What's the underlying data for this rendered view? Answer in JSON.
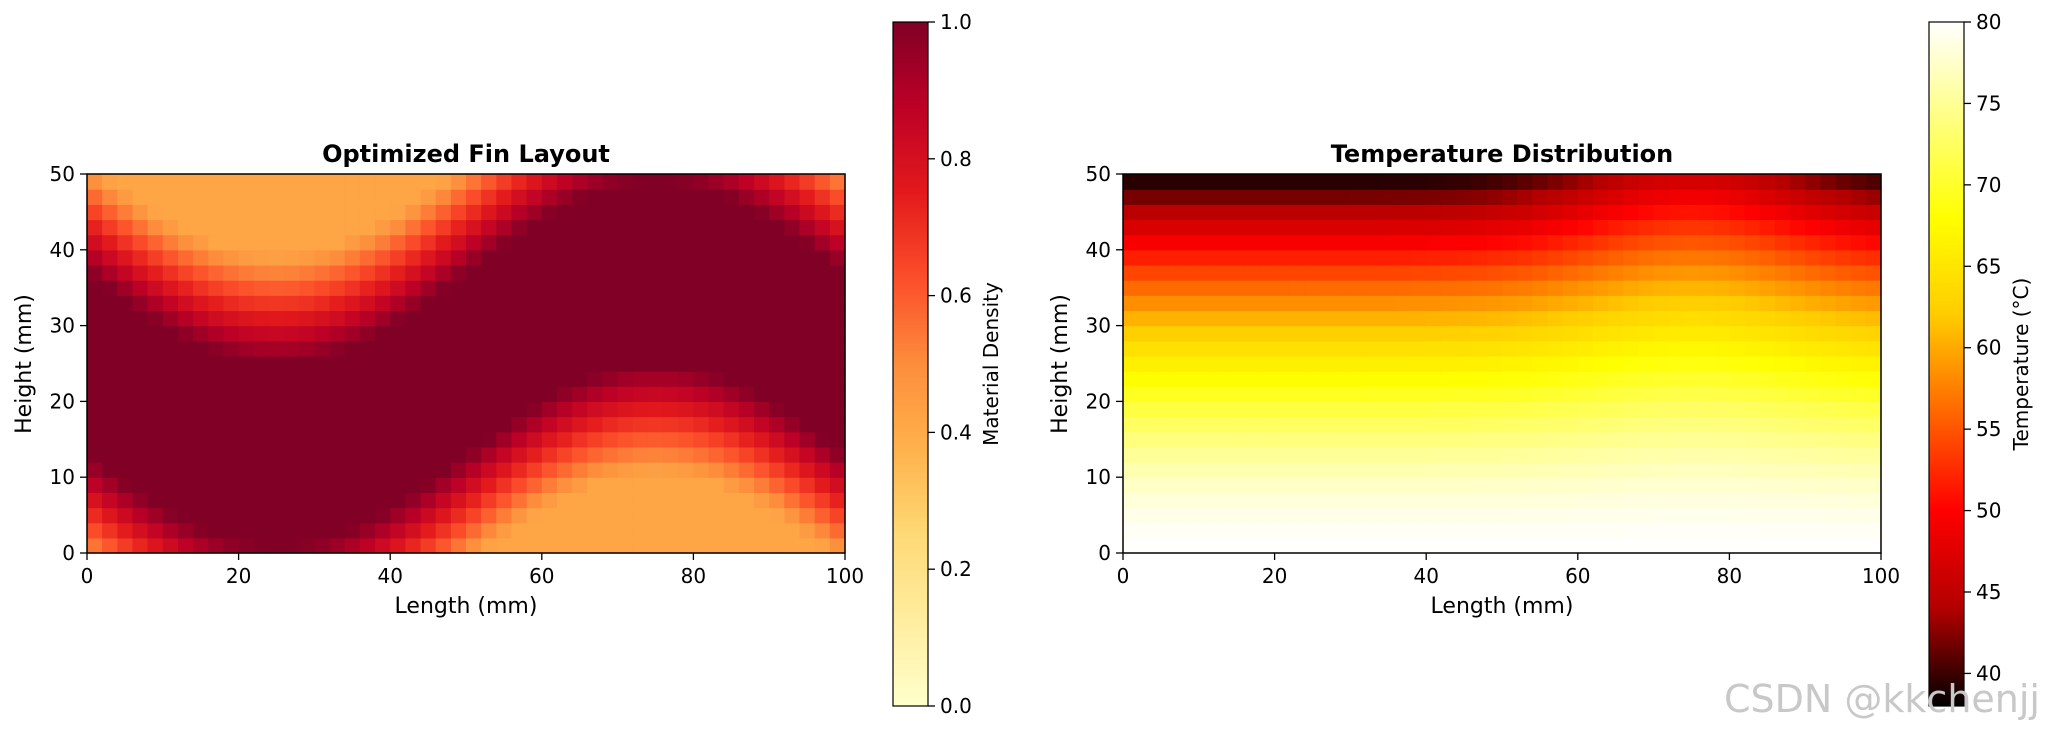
{
  "watermark": "CSDN @kkchenjj",
  "chart_data": [
    {
      "type": "heatmap",
      "title": "Optimized Fin Layout",
      "xlabel": "Length (mm)",
      "ylabel": "Height (mm)",
      "xlim": [
        0,
        100
      ],
      "ylim": [
        0,
        50
      ],
      "xticks": [
        "0",
        "20",
        "40",
        "60",
        "80",
        "100"
      ],
      "yticks": [
        "0",
        "10",
        "20",
        "30",
        "40",
        "50"
      ],
      "grid": [
        50,
        25
      ],
      "colormap": "YlOrRd",
      "colormap_stops": [
        "#ffffcc",
        "#ffeda0",
        "#fed976",
        "#feb24c",
        "#fd8d3c",
        "#fc4e2a",
        "#e31a1c",
        "#bd0026",
        "#800026"
      ],
      "field": "density = 0.5 + (0.5 - d/30)^2 ... band centered on y_c(x) = 25 - 15*sin(2*pi*x/100), clipped to [0,1]",
      "colorbar": {
        "label": "Material Density",
        "range": [
          0.0,
          1.0
        ],
        "ticks": [
          "0.0",
          "0.2",
          "0.4",
          "0.6",
          "0.8",
          "1.0"
        ]
      }
    },
    {
      "type": "heatmap",
      "title": "Temperature Distribution",
      "xlabel": "Length (mm)",
      "ylabel": "Height (mm)",
      "xlim": [
        0,
        100
      ],
      "ylim": [
        0,
        50
      ],
      "xticks": [
        "0",
        "20",
        "40",
        "60",
        "80",
        "100"
      ],
      "yticks": [
        "0",
        "10",
        "20",
        "30",
        "40",
        "50"
      ],
      "grid": [
        50,
        25
      ],
      "colormap": "hot",
      "colormap_stops": [
        "#000000",
        "#b30000",
        "#ff0000",
        "#ff6600",
        "#ffcc00",
        "#ffff00",
        "#ffff80",
        "#ffffff"
      ],
      "colorbar": {
        "label": "Temperature (°C)",
        "range": [
          38,
          80
        ],
        "ticks": [
          "40",
          "45",
          "50",
          "55",
          "60",
          "65",
          "70",
          "75",
          "80"
        ]
      }
    }
  ]
}
